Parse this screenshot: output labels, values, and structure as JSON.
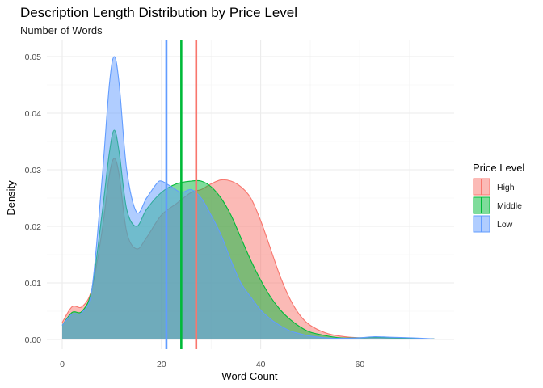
{
  "chart_data": {
    "type": "area",
    "title": "Description Length Distribution by Price Level",
    "subtitle": "Number of Words",
    "xlabel": "Word Count",
    "ylabel": "Density",
    "xlim": [
      0,
      75
    ],
    "ylim": [
      0,
      0.05
    ],
    "x_ticks": [
      0,
      20,
      40,
      60
    ],
    "y_ticks": [
      0.0,
      0.01,
      0.02,
      0.03,
      0.04,
      0.05
    ],
    "x_tick_labels": [
      "0",
      "20",
      "40",
      "60"
    ],
    "y_tick_labels": [
      "0.00",
      "0.01",
      "0.02",
      "0.03",
      "0.04",
      "0.05"
    ],
    "grid": true,
    "legend": {
      "title": "Price Level",
      "position": "right"
    },
    "series": [
      {
        "name": "High",
        "color": "#F8766D",
        "mean": 27,
        "points": [
          [
            0,
            0.003
          ],
          [
            2,
            0.0058
          ],
          [
            4,
            0.0058
          ],
          [
            6,
            0.009
          ],
          [
            8,
            0.019
          ],
          [
            9.5,
            0.029
          ],
          [
            10.5,
            0.032
          ],
          [
            11.5,
            0.029
          ],
          [
            13,
            0.019
          ],
          [
            15,
            0.016
          ],
          [
            17,
            0.018
          ],
          [
            20,
            0.022
          ],
          [
            23,
            0.024
          ],
          [
            26,
            0.026
          ],
          [
            28,
            0.0265
          ],
          [
            30,
            0.0275
          ],
          [
            32,
            0.0282
          ],
          [
            34,
            0.028
          ],
          [
            36,
            0.027
          ],
          [
            38,
            0.025
          ],
          [
            40,
            0.021
          ],
          [
            42,
            0.016
          ],
          [
            44,
            0.011
          ],
          [
            46,
            0.007
          ],
          [
            48,
            0.0042
          ],
          [
            50,
            0.0025
          ],
          [
            53,
            0.0012
          ],
          [
            56,
            0.0006
          ],
          [
            60,
            0.0003
          ],
          [
            63,
            0.0004
          ],
          [
            66,
            0.0003
          ],
          [
            70,
            0.0002
          ],
          [
            75,
            0.0001
          ]
        ]
      },
      {
        "name": "Middle",
        "color": "#00BA38",
        "mean": 24,
        "points": [
          [
            0,
            0.0025
          ],
          [
            2,
            0.0048
          ],
          [
            4,
            0.005
          ],
          [
            6,
            0.009
          ],
          [
            8,
            0.022
          ],
          [
            9.5,
            0.033
          ],
          [
            10.5,
            0.037
          ],
          [
            11.5,
            0.033
          ],
          [
            13,
            0.023
          ],
          [
            15,
            0.02
          ],
          [
            17,
            0.023
          ],
          [
            20,
            0.026
          ],
          [
            23,
            0.0275
          ],
          [
            26,
            0.028
          ],
          [
            28,
            0.028
          ],
          [
            30,
            0.027
          ],
          [
            32,
            0.025
          ],
          [
            34,
            0.022
          ],
          [
            36,
            0.018
          ],
          [
            38,
            0.014
          ],
          [
            40,
            0.0105
          ],
          [
            42,
            0.0075
          ],
          [
            44,
            0.0052
          ],
          [
            46,
            0.0035
          ],
          [
            48,
            0.0022
          ],
          [
            50,
            0.0013
          ],
          [
            53,
            0.0007
          ],
          [
            56,
            0.0003
          ],
          [
            60,
            0.0003
          ],
          [
            63,
            0.0004
          ],
          [
            66,
            0.0003
          ],
          [
            70,
            0.0002
          ],
          [
            75,
            0.0001
          ]
        ]
      },
      {
        "name": "Low",
        "color": "#619CFF",
        "mean": 21,
        "points": [
          [
            0,
            0.0025
          ],
          [
            2,
            0.0045
          ],
          [
            4,
            0.0048
          ],
          [
            6,
            0.009
          ],
          [
            8,
            0.028
          ],
          [
            9.5,
            0.045
          ],
          [
            10.5,
            0.05
          ],
          [
            11.5,
            0.045
          ],
          [
            13,
            0.03
          ],
          [
            15,
            0.0225
          ],
          [
            17,
            0.025
          ],
          [
            19,
            0.0275
          ],
          [
            20,
            0.028
          ],
          [
            22,
            0.027
          ],
          [
            24,
            0.026
          ],
          [
            26,
            0.0265
          ],
          [
            28,
            0.025
          ],
          [
            30,
            0.022
          ],
          [
            32,
            0.0185
          ],
          [
            34,
            0.014
          ],
          [
            36,
            0.01
          ],
          [
            38,
            0.0075
          ],
          [
            40,
            0.0052
          ],
          [
            42,
            0.0036
          ],
          [
            44,
            0.0024
          ],
          [
            46,
            0.0015
          ],
          [
            48,
            0.001
          ],
          [
            50,
            0.0006
          ],
          [
            53,
            0.0003
          ],
          [
            56,
            0.0002
          ],
          [
            60,
            0.0003
          ],
          [
            63,
            0.0005
          ],
          [
            66,
            0.0004
          ],
          [
            70,
            0.0003
          ],
          [
            75,
            0.0001
          ]
        ]
      }
    ]
  }
}
